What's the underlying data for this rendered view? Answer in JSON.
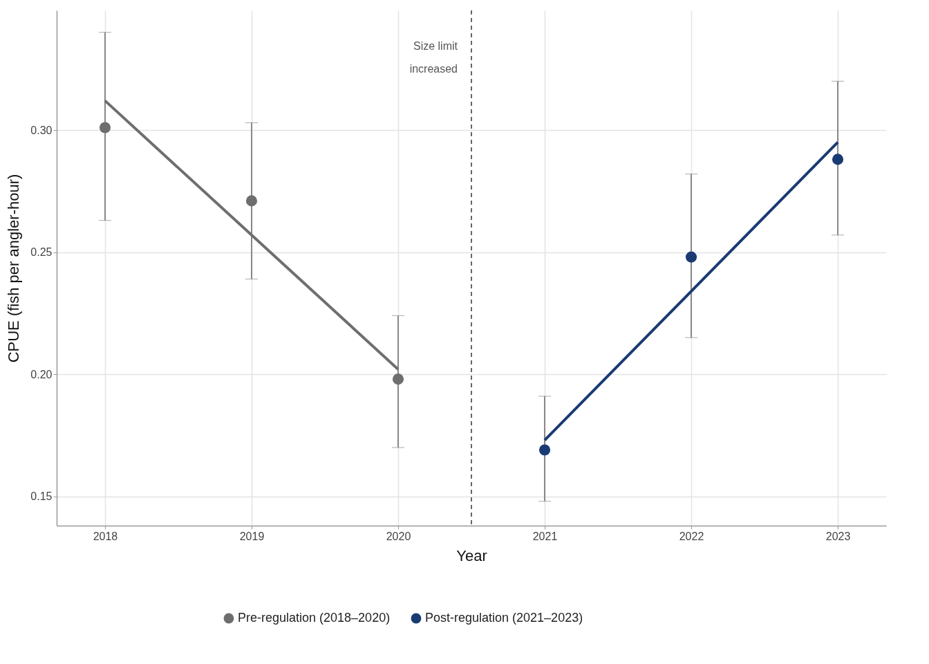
{
  "chart_data": {
    "type": "scatter",
    "xlabel": "Year",
    "ylabel": "CPUE (fish per angler-hour)",
    "xlim": [
      2017.67,
      2023.33
    ],
    "xticks": [
      2018,
      2019,
      2020,
      2021,
      2022,
      2023
    ],
    "ylim": [
      0.138,
      0.349
    ],
    "yticks": [
      0.15,
      {
        "value": 0.2,
        "label": "0.20"
      },
      0.25,
      {
        "value": 0.3,
        "label": "0.30"
      }
    ],
    "grid": true,
    "legend": "bottom",
    "series": [
      {
        "name": "Pre-regulation (2018–2020)",
        "marker": "circle",
        "color": "#6e6e6e",
        "x": [
          2018,
          2019,
          2020
        ],
        "values": [
          0.301,
          0.271,
          0.198
        ],
        "errors": [
          [
            0.263,
            0.34
          ],
          [
            0.239,
            0.303
          ],
          [
            0.17,
            0.224
          ]
        ]
      },
      {
        "name": "Post-regulation (2021–2023)",
        "marker": "circle",
        "color": "#1a3a73",
        "x": [
          2021,
          2022,
          2023
        ],
        "values": [
          0.169,
          0.248,
          0.288
        ],
        "errors": [
          [
            0.148,
            0.191
          ],
          [
            0.215,
            0.282
          ],
          [
            0.257,
            0.32
          ]
        ]
      },
      {
        "type": "line",
        "marker": "none",
        "color": "#6e6e6e",
        "line_style": "solid",
        "x": [
          2018,
          2020
        ],
        "values": [
          0.312,
          0.202
        ]
      },
      {
        "type": "line",
        "marker": "none",
        "color": "#1a3a73",
        "line_style": "solid",
        "x": [
          2021,
          2023
        ],
        "values": [
          0.173,
          0.295
        ]
      }
    ],
    "ref_lines": [
      {
        "axis": "x",
        "value": 2020.5,
        "label": "Size limit\nincreased",
        "color": "#666666",
        "line_style": "dashed"
      }
    ]
  }
}
